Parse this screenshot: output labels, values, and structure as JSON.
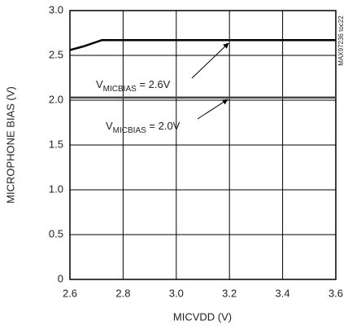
{
  "chart_data": {
    "type": "line",
    "x_label": "MICVDD (V)",
    "y_label": "MICROPHONE BIAS (V)",
    "side_note": "MAX97236 toc22",
    "x": [
      2.6,
      2.65,
      2.7,
      2.72,
      3.6
    ],
    "series": [
      {
        "color": "#000000",
        "values": [
          2.56,
          2.6,
          2.65,
          2.67,
          2.67
        ]
      },
      {
        "color": "#444444",
        "values": [
          2.03,
          2.03,
          2.03,
          2.03,
          2.03
        ]
      }
    ],
    "annotations": [
      {
        "text": "V",
        "subscript": "MICBIAS",
        "suffix": " = 2.6V"
      },
      {
        "text": "V",
        "subscript": "MICBIAS",
        "suffix": " = 2.0V"
      }
    ],
    "xlim": [
      2.6,
      3.6
    ],
    "xticks": [
      2.6,
      2.8,
      {
        "value": 3,
        "label": "3.0"
      },
      3.2,
      3.4,
      3.6
    ],
    "ylim": [
      0,
      3
    ],
    "yticks": [
      0,
      0.5,
      {
        "value": 1,
        "label": "1.0"
      },
      1.5,
      {
        "value": 2,
        "label": "2.0"
      },
      2.5,
      {
        "value": 3,
        "label": "3.0"
      }
    ],
    "grid": true
  }
}
